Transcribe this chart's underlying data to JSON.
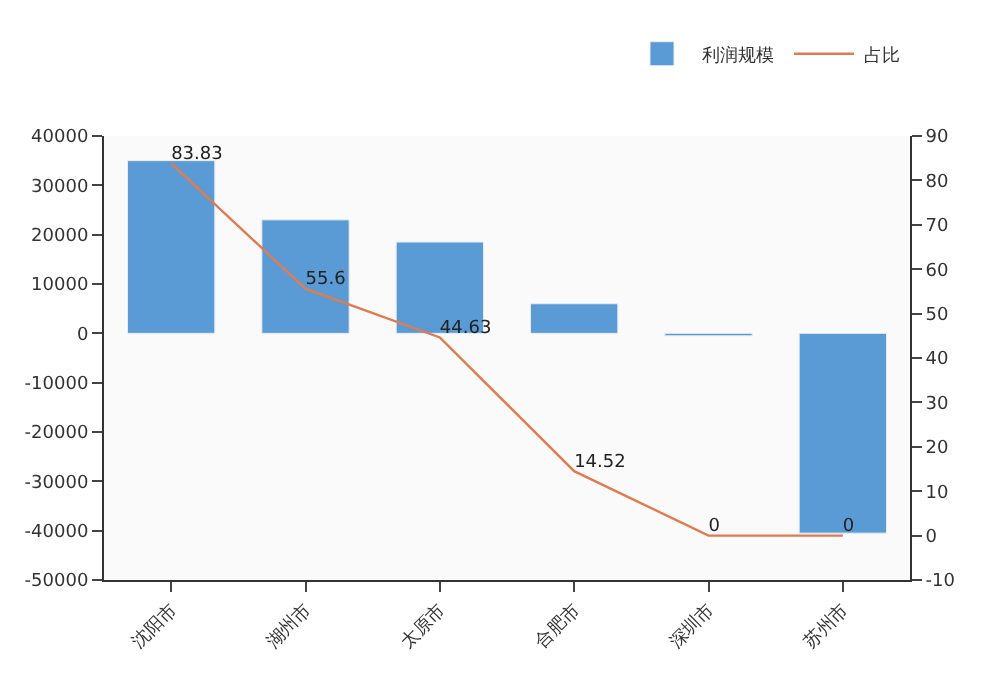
{
  "chart_data": {
    "type": "bar",
    "categories": [
      "沈阳市",
      "湖州市",
      "太原市",
      "合肥市",
      "深圳市",
      "苏州市"
    ],
    "series": [
      {
        "name": "利润规模",
        "color": "#5b9bd5",
        "values": [
          35000,
          23000,
          18500,
          6000,
          -500,
          -40500
        ]
      },
      {
        "name": "占比",
        "type": "line",
        "axis": "y2",
        "color": "#e07b50",
        "values": [
          83.83,
          55.6,
          44.63,
          14.52,
          0,
          0
        ],
        "value_labels": [
          "83.83",
          "55.6",
          "44.63",
          "14.52",
          "0",
          "0"
        ]
      }
    ],
    "ylim": [
      -50000,
      40000
    ],
    "yticks": [
      -50000,
      -40000,
      -30000,
      -20000,
      -10000,
      0,
      10000,
      20000,
      30000,
      40000
    ],
    "y2lim": [
      -10,
      90
    ],
    "y2ticks": [
      -10,
      0,
      10,
      20,
      30,
      40,
      50,
      60,
      70,
      80,
      90
    ],
    "legend": "top right",
    "grid": false,
    "marker": "none",
    "line_style": "solid"
  }
}
